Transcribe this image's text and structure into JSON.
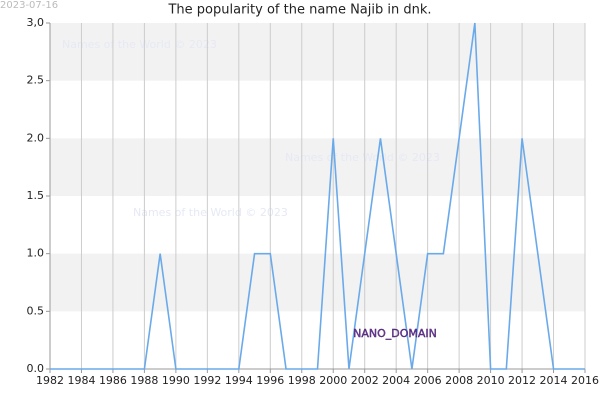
{
  "chart_data": {
    "type": "line",
    "title": "The popularity of the name Najib in dnk.",
    "date_stamp": "2023-07-16",
    "watermarks": [
      "Names of the World © 2023",
      "Names of the World © 2023",
      "Names of the World © 2023"
    ],
    "badge": "NANO_DOMAIN",
    "x": [
      1982,
      1983,
      1984,
      1985,
      1986,
      1987,
      1988,
      1989,
      1990,
      1991,
      1992,
      1993,
      1994,
      1995,
      1996,
      1997,
      1998,
      1999,
      2000,
      2001,
      2002,
      2003,
      2004,
      2005,
      2006,
      2007,
      2008,
      2009,
      2010,
      2011,
      2012,
      2013,
      2014,
      2015,
      2016
    ],
    "series": [
      {
        "name": "Najib",
        "color": "#6aaaea",
        "values": [
          0,
          0,
          0,
          0,
          0,
          0,
          0,
          1,
          0,
          0,
          0,
          0,
          0,
          1,
          1,
          0,
          0,
          0,
          2,
          0,
          1,
          2,
          1,
          0,
          1,
          1,
          2,
          3,
          0,
          0,
          2,
          1,
          0,
          0,
          0
        ]
      }
    ],
    "xlim": [
      1982,
      2016
    ],
    "xticks": [
      1982,
      1984,
      1986,
      1988,
      1990,
      1992,
      1994,
      1996,
      1998,
      2000,
      2002,
      2004,
      2006,
      2008,
      2010,
      2012,
      2014,
      2016
    ],
    "ylim": [
      0,
      3
    ],
    "yticks": [
      {
        "value": 0,
        "label": "0.0"
      },
      {
        "value": 0.5,
        "label": "0.5"
      },
      {
        "value": 1,
        "label": "1.0"
      },
      {
        "value": 1.5,
        "label": "1.5"
      },
      {
        "value": 2,
        "label": "2.0"
      },
      {
        "value": 2.5,
        "label": "2.5"
      },
      {
        "value": 3,
        "label": "3,0"
      }
    ],
    "grid": true
  }
}
